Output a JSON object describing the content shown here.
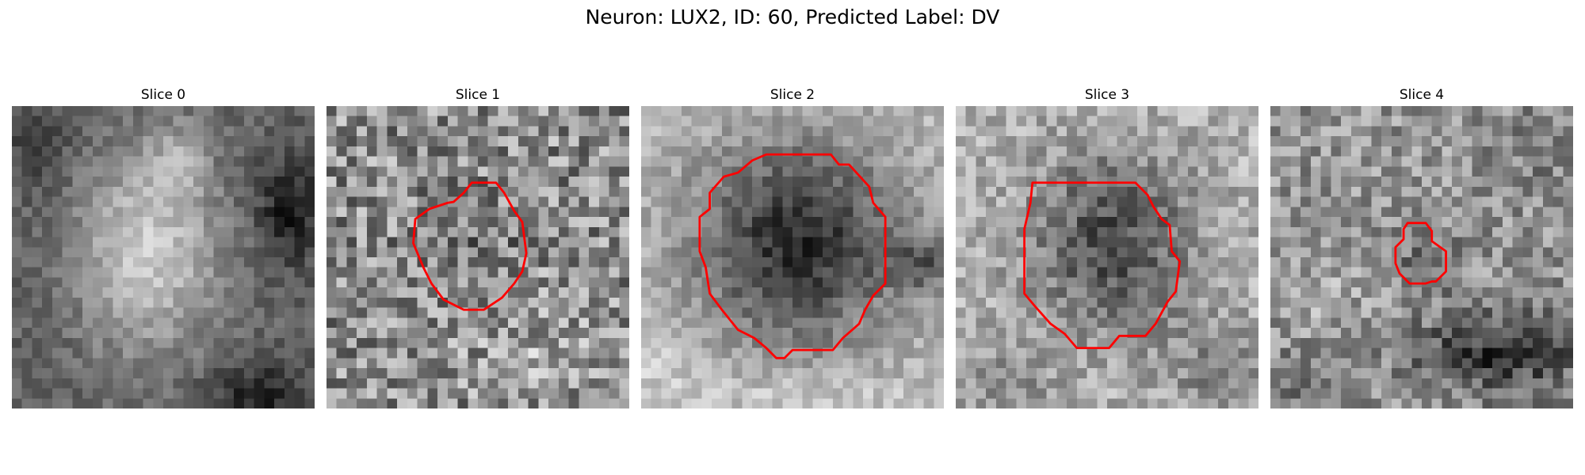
{
  "figure": {
    "title": "Neuron: LUX2, ID: 60, Predicted Label: DV"
  },
  "slices": [
    {
      "title": "Slice 0",
      "contour": false,
      "pattern": "bright-cell-on-left-dark-corners"
    },
    {
      "title": "Slice 1",
      "contour": true,
      "pattern": "noisy-texture-faint-center"
    },
    {
      "title": "Slice 2",
      "contour": true,
      "pattern": "large-dark-blob-bright-rim"
    },
    {
      "title": "Slice 3",
      "contour": true,
      "pattern": "dark-blob-bright-surround"
    },
    {
      "title": "Slice 4",
      "contour": true,
      "pattern": "small-dark-spot-dark-lower-right"
    }
  ],
  "colors": {
    "contour": "#ff0000",
    "background": "#ffffff"
  }
}
